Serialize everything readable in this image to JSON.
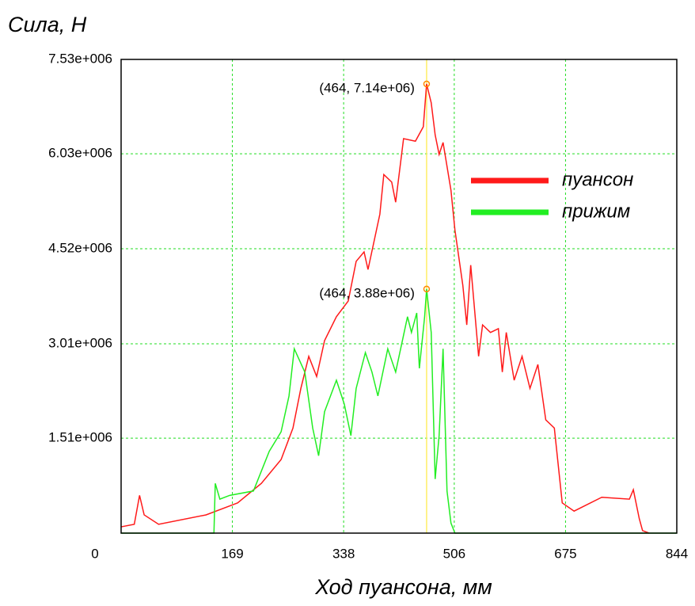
{
  "chart_data": {
    "type": "line",
    "ylabel": "Сила, Н",
    "xlabel": "Ход пуансона, мм",
    "xlim": [
      0,
      844
    ],
    "ylim": [
      0,
      7530000
    ],
    "xticks": [
      0,
      169,
      338,
      506,
      675,
      844
    ],
    "yticks": [
      {
        "value": 1510000,
        "label": "1.51e+006"
      },
      {
        "value": 3010000,
        "label": "3.01e+006"
      },
      {
        "value": 4520000,
        "label": "4.52e+006"
      },
      {
        "value": 6030000,
        "label": "6.03e+006"
      },
      {
        "value": 7530000,
        "label": "7.53e+006"
      }
    ],
    "grid": true,
    "legend": "upper right",
    "series": [
      {
        "name": "пуансон",
        "color": "#ff1a1a",
        "x": [
          0,
          20,
          28,
          35,
          57,
          129,
          177,
          213,
          243,
          261,
          273,
          285,
          297,
          309,
          327,
          345,
          357,
          369,
          375,
          393,
          399,
          411,
          417,
          429,
          447,
          459,
          464,
          471,
          477,
          483,
          489,
          501,
          507,
          519,
          525,
          531,
          543,
          549,
          561,
          573,
          579,
          585,
          597,
          609,
          621,
          633,
          645,
          658,
          670,
          688,
          730,
          772,
          778,
          787,
          792,
          802
        ],
        "values": [
          100000,
          140000,
          600000,
          290000,
          140000,
          290000,
          480000,
          790000,
          1170000,
          1670000,
          2300000,
          2810000,
          2490000,
          3060000,
          3440000,
          3690000,
          4320000,
          4470000,
          4190000,
          5070000,
          5700000,
          5580000,
          5260000,
          6270000,
          6230000,
          6460000,
          7140000,
          6840000,
          6330000,
          6020000,
          6210000,
          5450000,
          4820000,
          3940000,
          3310000,
          4260000,
          2810000,
          3310000,
          3190000,
          3250000,
          2560000,
          3190000,
          2430000,
          2810000,
          2300000,
          2680000,
          1800000,
          1670000,
          480000,
          350000,
          570000,
          540000,
          690000,
          230000,
          40000,
          0
        ]
      },
      {
        "name": "прижим",
        "color": "#22ee22",
        "x": [
          0,
          141,
          143,
          150,
          165,
          201,
          225,
          243,
          255,
          263,
          279,
          291,
          300,
          309,
          327,
          339,
          349,
          357,
          371,
          381,
          390,
          405,
          417,
          435,
          441,
          449,
          453,
          461,
          464,
          471,
          477,
          483,
          489,
          495,
          501,
          507,
          844
        ],
        "values": [
          0,
          0,
          790000,
          540000,
          600000,
          670000,
          1300000,
          1610000,
          2180000,
          2930000,
          2560000,
          1670000,
          1230000,
          1930000,
          2430000,
          2050000,
          1550000,
          2300000,
          2870000,
          2560000,
          2180000,
          2930000,
          2560000,
          3440000,
          3190000,
          3500000,
          2620000,
          3440000,
          3880000,
          3190000,
          860000,
          1550000,
          2930000,
          670000,
          160000,
          0,
          0
        ]
      }
    ],
    "annotations": [
      {
        "label": "(464, 7.14e+06)",
        "x": 464,
        "y": 7140000
      },
      {
        "label": "(464, 3.88e+06)",
        "x": 464,
        "y": 3880000
      }
    ]
  }
}
